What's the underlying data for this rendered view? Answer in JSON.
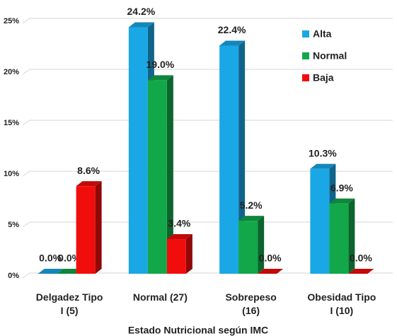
{
  "chart_data": {
    "type": "bar3d",
    "x_label": "Estado Nutricional según IMC",
    "categories": [
      "Delgadez Tipo I (5)",
      "Normal (27)",
      "Sobrepeso (16)",
      "Obesidad Tipo I (10)"
    ],
    "series": [
      {
        "name": "Alta",
        "color": "#1aa7e6",
        "values": [
          0,
          24.2,
          22.4,
          10.3
        ],
        "value_labels": [
          "0.0%",
          "24.2%",
          "22.4%",
          "10.3%"
        ]
      },
      {
        "name": "Normal",
        "color": "#12a84a",
        "values": [
          0,
          19.0,
          5.2,
          6.9
        ],
        "value_labels": [
          "0.0%",
          "19.0%",
          "5.2%",
          "6.9%"
        ]
      },
      {
        "name": "Baja",
        "color": "#f20d0d",
        "values": [
          8.6,
          3.4,
          0,
          0
        ],
        "value_labels": [
          "8.6%",
          "3.4%",
          "0.0%",
          "0.0%"
        ]
      }
    ],
    "ylim": [
      0,
      25
    ],
    "yticks": [
      {
        "value": 0,
        "label": "0%"
      },
      {
        "value": 5,
        "label": "5%"
      },
      {
        "value": 10,
        "label": "10%"
      },
      {
        "value": 15,
        "label": "15%"
      },
      {
        "value": 20,
        "label": "20%"
      },
      {
        "value": 25,
        "label": "25%"
      }
    ],
    "grid": true,
    "legend": "top-right"
  }
}
